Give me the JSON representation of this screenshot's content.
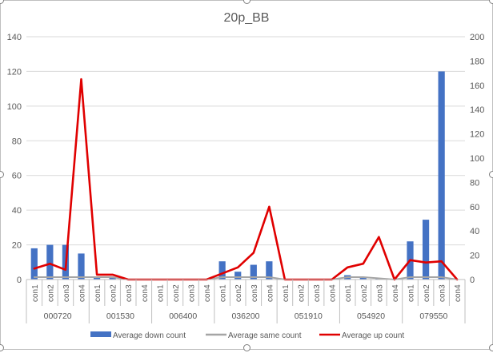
{
  "chart_data": {
    "type": "bar-line-combo",
    "title": "20p_BB",
    "groups": [
      "000720",
      "001530",
      "006400",
      "036200",
      "051910",
      "054920",
      "079550"
    ],
    "sub_categories": [
      "con1",
      "con2",
      "con3",
      "con4"
    ],
    "primary_axis": {
      "min": 0,
      "max": 140,
      "step": 20,
      "ticks": [
        "0",
        "20",
        "40",
        "60",
        "80",
        "100",
        "120",
        "140"
      ]
    },
    "secondary_axis": {
      "min": 0,
      "max": 200,
      "step": 20,
      "ticks": [
        "0",
        "20",
        "40",
        "60",
        "80",
        "100",
        "120",
        "140",
        "160",
        "180",
        "200"
      ]
    },
    "grid": true,
    "legend_position": "bottom",
    "series": [
      {
        "name": "Average down count",
        "type": "bar",
        "axis": "primary",
        "color": "#4472c4",
        "values": [
          18,
          20,
          20,
          15,
          1,
          1,
          0,
          0,
          0,
          0,
          0,
          0,
          10.5,
          4.5,
          8.5,
          10.5,
          0,
          0,
          0,
          0,
          2.5,
          1,
          0.5,
          0,
          22,
          34.5,
          120,
          0
        ]
      },
      {
        "name": "Average same count",
        "type": "line",
        "axis": "secondary",
        "color": "#a5a5a5",
        "values": [
          2,
          2,
          2,
          2,
          2,
          2,
          0,
          0,
          0,
          0,
          0,
          0,
          2,
          2,
          2,
          2,
          0,
          0,
          0,
          0,
          2,
          2,
          1,
          0,
          2,
          2,
          2,
          0
        ]
      },
      {
        "name": "Average up count",
        "type": "line",
        "axis": "secondary",
        "color": "#e00000",
        "values": [
          9,
          13,
          8,
          165,
          4,
          4,
          0,
          0,
          0,
          0,
          0,
          0,
          5,
          10,
          22,
          60,
          0,
          0,
          0,
          0,
          10,
          13,
          35,
          0,
          16,
          14,
          15,
          0
        ]
      }
    ]
  }
}
